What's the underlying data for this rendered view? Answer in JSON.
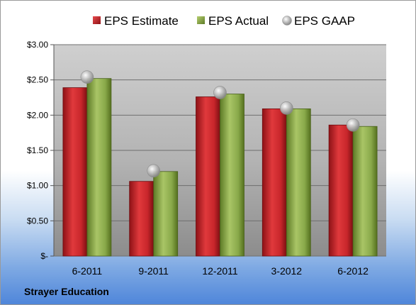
{
  "chart_data": {
    "type": "bar",
    "categories": [
      "6-2011",
      "9-2011",
      "12-2011",
      "3-2012",
      "6-2012"
    ],
    "series": [
      {
        "name": "EPS Estimate",
        "kind": "bar",
        "color": "#c8262b",
        "values": [
          2.39,
          1.06,
          2.26,
          2.09,
          1.86
        ]
      },
      {
        "name": "EPS Actual",
        "kind": "bar",
        "color": "#89a94a",
        "values": [
          2.52,
          1.2,
          2.3,
          2.09,
          1.84
        ]
      },
      {
        "name": "EPS GAAP",
        "kind": "marker",
        "color": "#b4b4b4",
        "values": [
          2.54,
          1.21,
          2.32,
          2.1,
          1.86
        ]
      }
    ],
    "yticks": [
      {
        "value": 0,
        "label": "$-"
      },
      {
        "value": 0.5,
        "label": "$0.50"
      },
      {
        "value": 1.0,
        "label": "$1.00"
      },
      {
        "value": 1.5,
        "label": "$1.50"
      },
      {
        "value": 2.0,
        "label": "$2.00"
      },
      {
        "value": 2.5,
        "label": "$2.50"
      },
      {
        "value": 3.0,
        "label": "$3.00"
      }
    ],
    "ylim": [
      0,
      3
    ],
    "grid": true,
    "legend_position": "top"
  },
  "footer": {
    "company": "Strayer Education"
  }
}
